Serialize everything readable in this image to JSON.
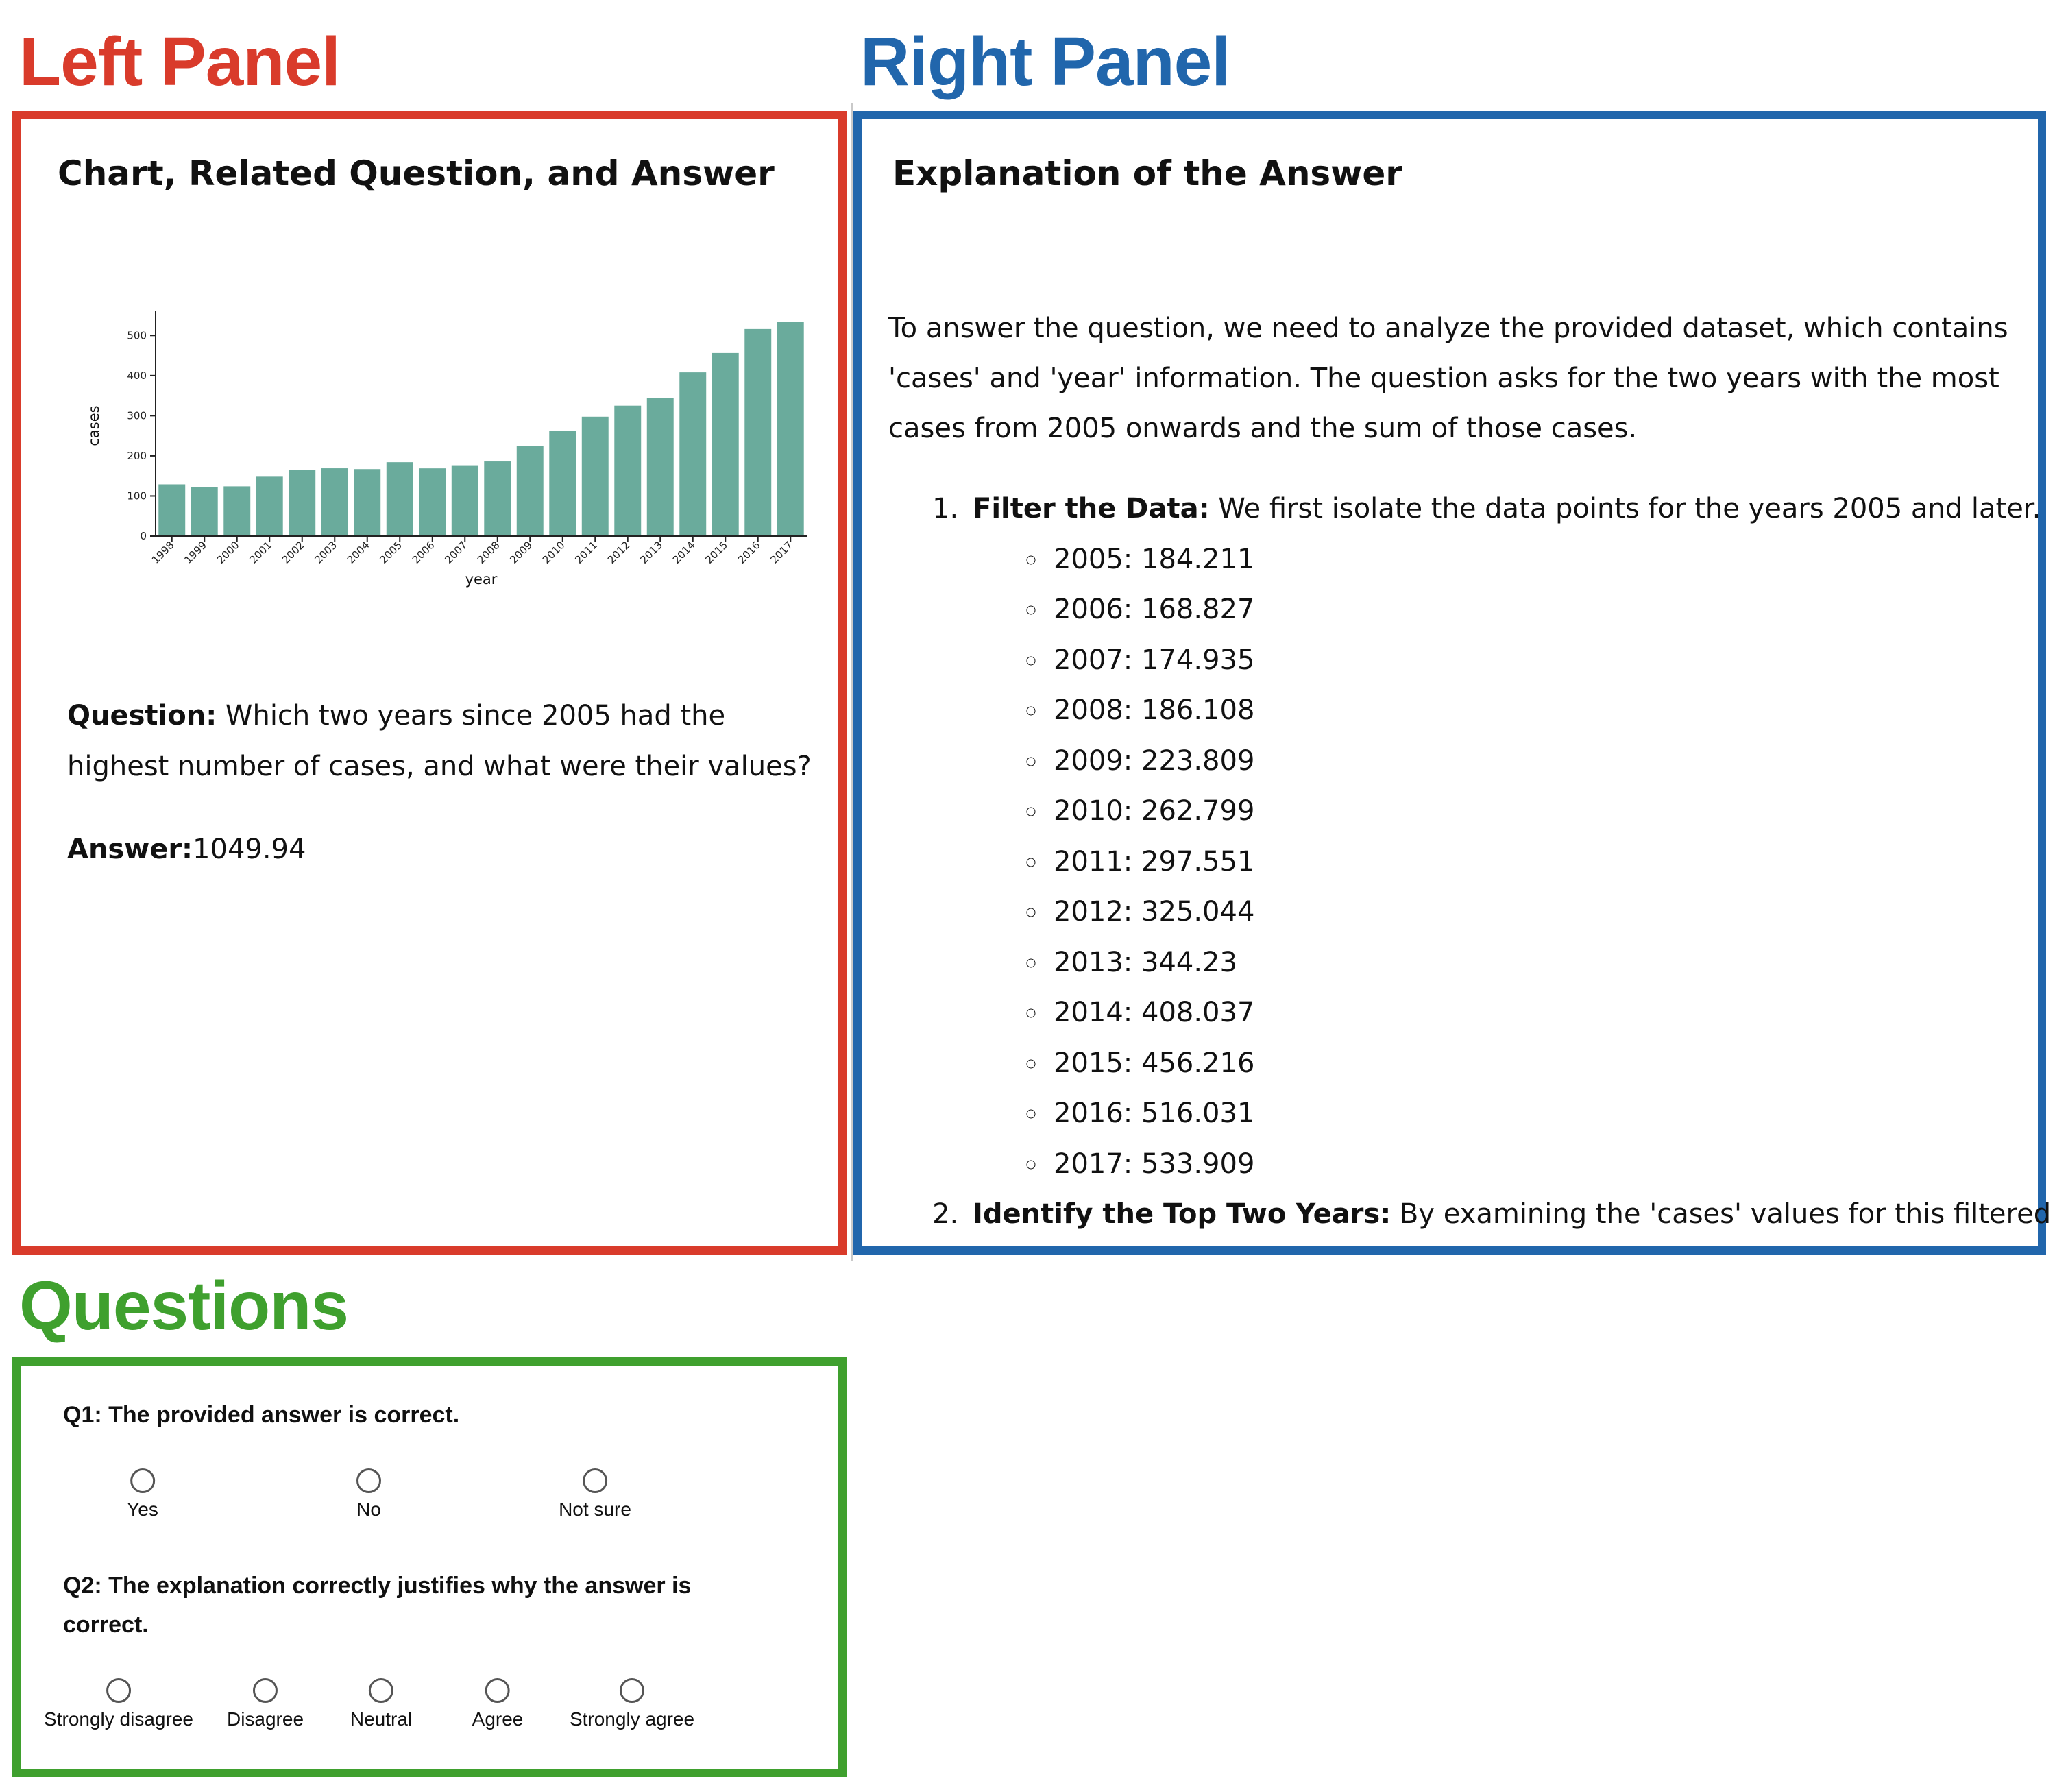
{
  "headings": {
    "left": "Left Panel",
    "right": "Right Panel",
    "questions": "Questions"
  },
  "colors": {
    "left": "#d93b2b",
    "right": "#2166ac",
    "questions": "#3fa02e",
    "bar": "#6aab9c"
  },
  "left_panel": {
    "title": "Chart, Related Question, and Answer",
    "question_label": "Question:",
    "question_text": " Which two years since 2005 had the highest number of cases, and what were their values?",
    "answer_label": "Answer:",
    "answer_value": "1049.94"
  },
  "chart_data": {
    "type": "bar",
    "categories": [
      "1998",
      "1999",
      "2000",
      "2001",
      "2002",
      "2003",
      "2004",
      "2005",
      "2006",
      "2007",
      "2008",
      "2009",
      "2010",
      "2011",
      "2012",
      "2013",
      "2014",
      "2015",
      "2016",
      "2017"
    ],
    "values": [
      129,
      122,
      124,
      148,
      164,
      169,
      167,
      184.211,
      168.827,
      174.935,
      186.108,
      223.809,
      262.799,
      297.551,
      325.044,
      344.23,
      408.037,
      456.216,
      516.031,
      533.909
    ],
    "xlabel": "year",
    "ylabel": "cases",
    "ylim": [
      0,
      550
    ],
    "yticks": [
      0,
      100,
      200,
      300,
      400,
      500
    ],
    "grid": false
  },
  "right_panel": {
    "title": "Explanation of the Answer",
    "intro": "To answer the question, we need to analyze the provided dataset, which contains 'cases' and 'year' information. The question asks for the two years with the most cases from 2005 onwards and the sum of those cases.",
    "step1_label": "Filter the Data:",
    "step1_text": " We first isolate the data points for the years 2005 and later.",
    "filtered_points": [
      "2005: 184.211",
      "2006: 168.827",
      "2007: 174.935",
      "2008: 186.108",
      "2009: 223.809",
      "2010: 262.799",
      "2011: 297.551",
      "2012: 325.044",
      "2013: 344.23",
      "2014: 408.037",
      "2015: 456.216",
      "2016: 516.031",
      "2017: 533.909"
    ],
    "step2_label": "Identify the Top Two Years:",
    "step2_text": " By examining the 'cases' values for this filtered"
  },
  "questions": {
    "q1": {
      "label": "Q1: The provided answer is correct.",
      "options": [
        "Yes",
        "No",
        "Not sure"
      ]
    },
    "q2": {
      "label": "Q2: The explanation correctly justifies why the answer is correct.",
      "options": [
        "Strongly disagree",
        "Disagree",
        "Neutral",
        "Agree",
        "Strongly agree"
      ]
    }
  }
}
